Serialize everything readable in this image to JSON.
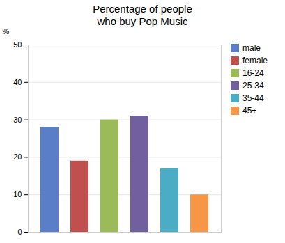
{
  "chart_data": {
    "type": "bar",
    "title": "Percentage of people\nwho buy Pop Music",
    "ylabel": "%",
    "categories": [
      "male",
      "female",
      "16-24",
      "25-34",
      "35-44",
      "45+"
    ],
    "values": [
      28,
      19,
      30,
      31,
      17,
      10
    ],
    "colors": [
      "#5b7ec9",
      "#c0504d",
      "#9bbb59",
      "#7060a0",
      "#4bacc6",
      "#f79646"
    ],
    "ylim": [
      0,
      50
    ],
    "yticks": [
      0,
      10,
      20,
      30,
      40,
      50
    ],
    "grid": true,
    "legend": "upper right",
    "tick_labels": "y"
  }
}
